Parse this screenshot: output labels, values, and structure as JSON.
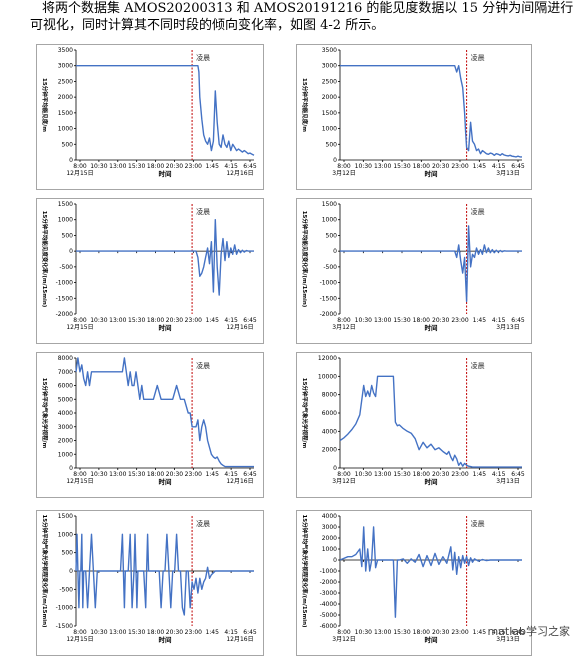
{
  "intro": {
    "line1": "将两个数据集 AMOS20200313 和 AMOS20191216 的能见度数据以 15 分钟为间隔进行",
    "line2": "可视化，同时计算其不同时段的倾向变化率，如图 4-2 所示。"
  },
  "watermark": "matlab学习之家",
  "colors": {
    "series": "#4472c4",
    "marker": "#c00000",
    "frame": "#a6a6a6"
  },
  "chart_data": [
    {
      "type": "line",
      "ylim": [
        0,
        3500
      ],
      "yticks": [
        "0",
        "500",
        "1000",
        "1500",
        "2000",
        "2500",
        "3000",
        "3500"
      ],
      "ylabel": "15分钟平均能见度/m",
      "xlabel": "时间",
      "xtick_labels": [
        "8:00",
        "10:30",
        "13:00",
        "15:30",
        "18:00",
        "20:30",
        "23:00",
        "1:45",
        "4:15",
        "6:45"
      ],
      "date_labels": [
        "12月15日",
        "12月16日"
      ],
      "annotation": "凌晨",
      "marker_x": 60,
      "x": [
        0,
        59,
        59.5,
        60,
        61,
        62,
        63,
        63.5,
        64,
        65,
        66,
        67,
        68,
        69,
        70,
        71,
        72,
        73,
        74,
        75,
        76,
        77,
        78,
        79,
        80,
        81,
        82,
        83,
        84,
        85,
        86,
        87,
        88,
        89,
        90,
        91,
        92
      ],
      "values": [
        3000,
        3000,
        3000,
        3000,
        3000,
        3000,
        3000,
        2800,
        2000,
        1300,
        800,
        600,
        500,
        700,
        300,
        600,
        2200,
        1200,
        500,
        400,
        800,
        500,
        400,
        600,
        300,
        500,
        400,
        300,
        350,
        300,
        250,
        300,
        250,
        200,
        220,
        180,
        150
      ]
    },
    {
      "type": "line",
      "ylim": [
        0,
        3500
      ],
      "yticks": [
        "0",
        "500",
        "1000",
        "1500",
        "2000",
        "2500",
        "3000",
        "3500"
      ],
      "ylabel": "15分钟平均能见度/m",
      "xlabel": "时间",
      "xtick_labels": [
        "8:00",
        "10:30",
        "13:00",
        "15:30",
        "18:00",
        "20:30",
        "23:00",
        "1:45",
        "4:15",
        "6:45"
      ],
      "date_labels": [
        "3月12日",
        "3月13日"
      ],
      "annotation": "凌晨",
      "marker_x": 64,
      "x": [
        0,
        58,
        59,
        60,
        61,
        62,
        63,
        63.5,
        64,
        65,
        66,
        67,
        68,
        69,
        70,
        71,
        72,
        73,
        74,
        75,
        76,
        77,
        78,
        79,
        80,
        81,
        82,
        83,
        84,
        85,
        86,
        87,
        88,
        89,
        90,
        91,
        92
      ],
      "values": [
        3000,
        3000,
        2800,
        3000,
        2600,
        2300,
        1500,
        900,
        400,
        300,
        1200,
        600,
        500,
        300,
        350,
        200,
        300,
        250,
        200,
        180,
        220,
        200,
        150,
        200,
        180,
        150,
        200,
        160,
        140,
        130,
        150,
        120,
        110,
        100,
        120,
        100,
        100
      ]
    },
    {
      "type": "line",
      "ylim": [
        -2000,
        1500
      ],
      "yticks": [
        "-2000",
        "-1500",
        "-1000",
        "-500",
        "0",
        "500",
        "1000",
        "1500"
      ],
      "ylabel": "15分钟平均能见度变化率/(m/15min)",
      "xlabel": "时间",
      "xtick_labels": [
        "8:00",
        "10:30",
        "13:00",
        "15:30",
        "18:00",
        "20:30",
        "23:00",
        "1:45",
        "4:15",
        "6:45"
      ],
      "date_labels": [
        "12月15日",
        "12月16日"
      ],
      "annotation": "凌晨",
      "marker_x": 60,
      "x": [
        0,
        62,
        63,
        64,
        65,
        66,
        67,
        68,
        69,
        70,
        71,
        72,
        73,
        74,
        75,
        76,
        77,
        78,
        79,
        80,
        81,
        82,
        83,
        84,
        85,
        86,
        87,
        88,
        89,
        90,
        92
      ],
      "values": [
        0,
        0,
        -200,
        -800,
        -700,
        -500,
        -200,
        100,
        -400,
        300,
        -1300,
        1000,
        -500,
        -1400,
        -100,
        400,
        -300,
        300,
        -200,
        100,
        -100,
        200,
        -100,
        50,
        -50,
        30,
        -30,
        20,
        0,
        0,
        0
      ]
    },
    {
      "type": "line",
      "ylim": [
        -2000,
        1500
      ],
      "yticks": [
        "-2000",
        "-1500",
        "-1000",
        "-500",
        "0",
        "500",
        "1000",
        "1500"
      ],
      "ylabel": "15分钟平均能见度变化率/(m/15min)",
      "xlabel": "时间",
      "xtick_labels": [
        "8:00",
        "10:30",
        "13:00",
        "15:30",
        "18:00",
        "20:30",
        "23:00",
        "1:45",
        "4:15",
        "6:45"
      ],
      "date_labels": [
        "3月12日",
        "3月13日"
      ],
      "annotation": "凌晨",
      "marker_x": 64,
      "x": [
        0,
        58,
        59,
        60,
        61,
        62,
        63,
        64,
        65,
        66,
        67,
        68,
        69,
        70,
        71,
        72,
        73,
        74,
        75,
        76,
        77,
        78,
        79,
        80,
        81,
        82,
        83,
        84,
        85,
        86,
        92
      ],
      "values": [
        0,
        0,
        -200,
        200,
        -300,
        -700,
        -200,
        -1600,
        800,
        -500,
        -100,
        -200,
        100,
        -100,
        50,
        -100,
        200,
        -50,
        100,
        -50,
        50,
        -50,
        30,
        -30,
        20,
        -20,
        10,
        0,
        0,
        0,
        0
      ]
    },
    {
      "type": "line",
      "ylim": [
        0,
        8000
      ],
      "yticks": [
        "0",
        "1000",
        "2000",
        "3000",
        "4000",
        "5000",
        "6000",
        "7000",
        "8000"
      ],
      "ylabel": "15分钟平均气象光学视程/m",
      "xlabel": "时间",
      "xtick_labels": [
        "8:00",
        "10:30",
        "13:00",
        "15:30",
        "18:00",
        "20:30",
        "23:00",
        "1:45",
        "4:15",
        "6:45"
      ],
      "date_labels": [
        "12月15日",
        "12月16日"
      ],
      "annotation": "凌晨",
      "marker_x": 60,
      "x": [
        0,
        1,
        2,
        3,
        4,
        5,
        6,
        7,
        8,
        10,
        12,
        14,
        16,
        18,
        20,
        22,
        24,
        25,
        26,
        27,
        28,
        29,
        30,
        31,
        32,
        33,
        34,
        35,
        36,
        38,
        40,
        42,
        44,
        45,
        46,
        47,
        48,
        50,
        52,
        54,
        56,
        58,
        59,
        60,
        61,
        62,
        63,
        64,
        65,
        66,
        67,
        68,
        69,
        70,
        71,
        72,
        73,
        74,
        75,
        76,
        77,
        78,
        80,
        82,
        84,
        86,
        88,
        90,
        92
      ],
      "values": [
        7000,
        8000,
        7000,
        7500,
        6500,
        6000,
        7000,
        6000,
        7000,
        7000,
        7000,
        7000,
        7000,
        7000,
        7000,
        7000,
        7000,
        8000,
        7000,
        6000,
        7000,
        6000,
        6000,
        7000,
        6000,
        5000,
        6000,
        5000,
        5000,
        5000,
        5000,
        6000,
        5000,
        5000,
        5000,
        5000,
        5000,
        5000,
        6000,
        5000,
        5000,
        4000,
        4000,
        3000,
        3000,
        3000,
        3500,
        2000,
        3000,
        3500,
        3000,
        2000,
        1500,
        1000,
        800,
        700,
        800,
        500,
        300,
        200,
        100,
        100,
        100,
        100,
        100,
        100,
        100,
        100,
        100
      ]
    },
    {
      "type": "line",
      "ylim": [
        0,
        12000
      ],
      "yticks": [
        "0",
        "2000",
        "4000",
        "6000",
        "8000",
        "10000",
        "12000"
      ],
      "ylabel": "15分钟平均气象光学视程/m",
      "xlabel": "时间",
      "xtick_labels": [
        "8:00",
        "10:30",
        "13:00",
        "15:30",
        "18:00",
        "20:30",
        "23:00",
        "1:45",
        "4:15",
        "6:45"
      ],
      "date_labels": [
        "3月12日",
        "3月13日"
      ],
      "annotation": "凌晨",
      "marker_x": 64,
      "x": [
        0,
        2,
        4,
        6,
        8,
        10,
        12,
        13,
        14,
        15,
        16,
        17,
        18,
        19,
        20,
        21,
        22,
        23,
        24,
        25,
        26,
        27,
        28,
        29,
        30,
        32,
        34,
        36,
        38,
        40,
        42,
        44,
        46,
        48,
        50,
        52,
        54,
        55,
        56,
        57,
        58,
        59,
        60,
        61,
        62,
        63,
        64,
        65,
        66,
        67,
        68,
        70,
        72,
        74,
        76,
        78,
        80,
        82,
        84,
        86,
        88,
        90,
        92
      ],
      "values": [
        3000,
        3300,
        3700,
        4200,
        4800,
        5800,
        9000,
        7800,
        8400,
        7800,
        9000,
        8200,
        7800,
        10000,
        10000,
        10000,
        10000,
        10000,
        10000,
        10000,
        10000,
        10000,
        5000,
        4600,
        4700,
        4300,
        4000,
        3800,
        3200,
        2000,
        2800,
        2200,
        2600,
        2000,
        2200,
        1800,
        1500,
        1800,
        1200,
        800,
        1400,
        1000,
        300,
        600,
        200,
        500,
        300,
        200,
        150,
        100,
        100,
        100,
        100,
        100,
        100,
        100,
        100,
        100,
        100,
        100,
        100,
        100,
        100
      ]
    },
    {
      "type": "line",
      "ylim": [
        -1500,
        1500
      ],
      "yticks": [
        "-1500",
        "-1000",
        "-500",
        "0",
        "500",
        "1000",
        "1500"
      ],
      "ylabel": "15分钟平均气象光学视程变化率/(m/15min)",
      "xlabel": "时间",
      "xtick_labels": [
        "8:00",
        "10:30",
        "13:00",
        "15:30",
        "18:00",
        "20:30",
        "23:00",
        "1:45",
        "4:15",
        "6:45"
      ],
      "date_labels": [
        "12月15日",
        "12月16日"
      ],
      "annotation": "凌晨",
      "marker_x": 60,
      "x": [
        0,
        0.5,
        1,
        1.5,
        2,
        2.5,
        3,
        3.5,
        4,
        4.5,
        5,
        6,
        7,
        8,
        9,
        10,
        11,
        12,
        23,
        24,
        24.5,
        25,
        25.5,
        26,
        27,
        28,
        29,
        30,
        30.5,
        31,
        31.5,
        32,
        33,
        34,
        35,
        36,
        36.5,
        37,
        37.5,
        38,
        39,
        40,
        41,
        42,
        43,
        44,
        45,
        46,
        47,
        48,
        49,
        50,
        51,
        52,
        53,
        54,
        55,
        56,
        57,
        58,
        59,
        60,
        61,
        62,
        63,
        64,
        65,
        66,
        67,
        68,
        69,
        70,
        72,
        74,
        76,
        78,
        80,
        82,
        84,
        86,
        88,
        90,
        92
      ],
      "values": [
        0,
        1000,
        0,
        -1000,
        0,
        0,
        1000,
        -1000,
        0,
        0,
        0,
        -1000,
        0,
        1000,
        0,
        -1000,
        0,
        0,
        0,
        1000,
        0,
        -1000,
        0,
        0,
        0,
        1000,
        -1000,
        0,
        1000,
        0,
        -1000,
        0,
        0,
        0,
        0,
        -1000,
        0,
        1000,
        0,
        0,
        0,
        0,
        0,
        0,
        0,
        -1000,
        0,
        0,
        1000,
        0,
        -1000,
        0,
        0,
        1000,
        0,
        0,
        -1000,
        -1200,
        0,
        0,
        -1000,
        -300,
        -500,
        -200,
        -600,
        -200,
        -500,
        -300,
        -200,
        100,
        -200,
        -100,
        0,
        0,
        0,
        0,
        0,
        0,
        0,
        0,
        0,
        0,
        0
      ]
    },
    {
      "type": "line",
      "ylim": [
        -6000,
        4000
      ],
      "yticks": [
        "-6000",
        "-5000",
        "-4000",
        "-3000",
        "-2000",
        "-1000",
        "0",
        "1000",
        "2000",
        "3000",
        "4000"
      ],
      "ylabel": "15分钟平均气象光学视程变化率/(m/15min)",
      "xlabel": "时间",
      "xtick_labels": [
        "8:00",
        "10:30",
        "13:00",
        "15:30",
        "18:00",
        "20:30",
        "23:00",
        "1:45",
        "4:15",
        "6:45"
      ],
      "date_labels": [
        "3月12日",
        "3月13日"
      ],
      "annotation": "凌晨",
      "marker_x": 64,
      "x": [
        0,
        4,
        6,
        8,
        10,
        11,
        12,
        13,
        14,
        15,
        16,
        17,
        18,
        19,
        20,
        21,
        22,
        23,
        24,
        25,
        26,
        27,
        28,
        29,
        30,
        32,
        34,
        36,
        38,
        40,
        42,
        44,
        46,
        48,
        50,
        52,
        54,
        56,
        57,
        58,
        59,
        60,
        61,
        62,
        63,
        64,
        65,
        66,
        67,
        68,
        70,
        72,
        74,
        76,
        78,
        80,
        82,
        84,
        86,
        88,
        90,
        92
      ],
      "values": [
        0,
        300,
        300,
        500,
        1000,
        -600,
        3000,
        -1000,
        1000,
        -1000,
        0,
        3000,
        -700,
        0,
        0,
        0,
        0,
        0,
        0,
        0,
        0,
        0,
        -5200,
        0,
        0,
        100,
        -300,
        100,
        -200,
        500,
        -600,
        400,
        -500,
        600,
        -400,
        300,
        -300,
        1200,
        -900,
        700,
        -1300,
        300,
        -700,
        400,
        -300,
        300,
        -500,
        200,
        -200,
        100,
        -100,
        50,
        -50,
        0,
        0,
        0,
        0,
        0,
        0,
        0,
        0,
        0
      ]
    }
  ]
}
